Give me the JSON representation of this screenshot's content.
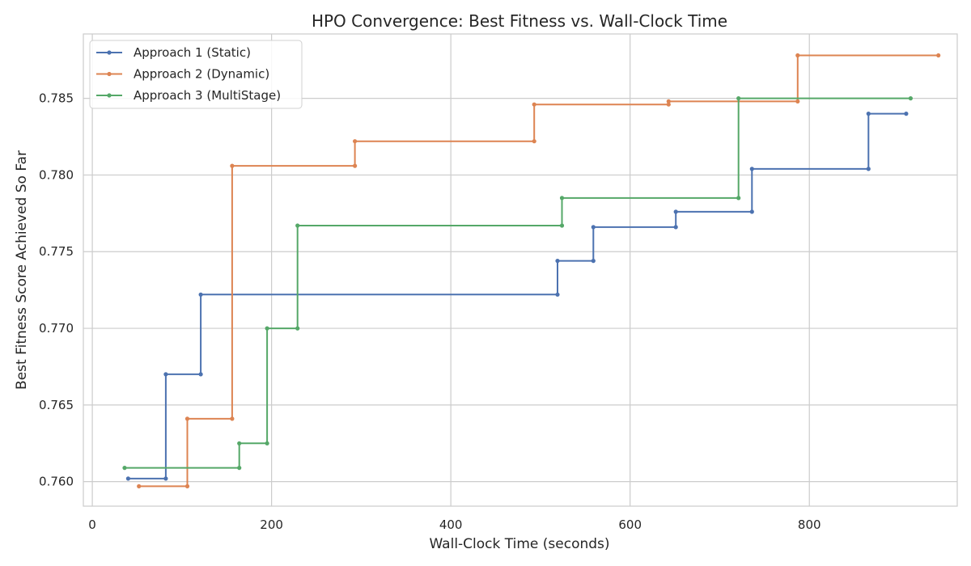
{
  "chart_data": {
    "type": "line",
    "step": "post",
    "title": "HPO Convergence: Best Fitness vs. Wall-Clock Time",
    "xlabel": "Wall-Clock Time (seconds)",
    "ylabel": "Best Fitness Score Achieved So Far",
    "xlim": [
      -10,
      965
    ],
    "ylim": [
      0.7584,
      0.7892
    ],
    "xticks": [
      0,
      200,
      400,
      600,
      800
    ],
    "yticks": [
      0.76,
      0.765,
      0.77,
      0.775,
      0.78,
      0.785
    ],
    "xtick_labels": [
      "0",
      "200",
      "400",
      "600",
      "800"
    ],
    "ytick_labels": [
      "0.760",
      "0.765",
      "0.770",
      "0.775",
      "0.780",
      "0.785"
    ],
    "grid": true,
    "legend_position": "top-left",
    "series": [
      {
        "name": "Approach 1 (Static)",
        "color": "#4c72b0",
        "points": [
          [
            40,
            0.7602
          ],
          [
            82,
            0.7602
          ],
          [
            82,
            0.767
          ],
          [
            121,
            0.767
          ],
          [
            121,
            0.7722
          ],
          [
            519,
            0.7722
          ],
          [
            519,
            0.7744
          ],
          [
            559,
            0.7744
          ],
          [
            559,
            0.7766
          ],
          [
            651,
            0.7766
          ],
          [
            651,
            0.7776
          ],
          [
            736,
            0.7776
          ],
          [
            736,
            0.7804
          ],
          [
            866,
            0.7804
          ],
          [
            866,
            0.784
          ],
          [
            908,
            0.784
          ]
        ]
      },
      {
        "name": "Approach 2 (Dynamic)",
        "color": "#dd8452",
        "points": [
          [
            52,
            0.7597
          ],
          [
            106,
            0.7597
          ],
          [
            106,
            0.7641
          ],
          [
            156,
            0.7641
          ],
          [
            156,
            0.7806
          ],
          [
            293,
            0.7806
          ],
          [
            293,
            0.7822
          ],
          [
            493,
            0.7822
          ],
          [
            493,
            0.7846
          ],
          [
            643,
            0.7846
          ],
          [
            643,
            0.7848
          ],
          [
            787,
            0.7848
          ],
          [
            787,
            0.7878
          ],
          [
            944,
            0.7878
          ]
        ]
      },
      {
        "name": "Approach 3 (MultiStage)",
        "color": "#55a868",
        "points": [
          [
            36,
            0.7609
          ],
          [
            164,
            0.7609
          ],
          [
            164,
            0.7625
          ],
          [
            195,
            0.7625
          ],
          [
            195,
            0.77
          ],
          [
            229,
            0.77
          ],
          [
            229,
            0.7767
          ],
          [
            524,
            0.7767
          ],
          [
            524,
            0.7785
          ],
          [
            721,
            0.7785
          ],
          [
            721,
            0.785
          ],
          [
            913,
            0.785
          ]
        ]
      }
    ]
  }
}
